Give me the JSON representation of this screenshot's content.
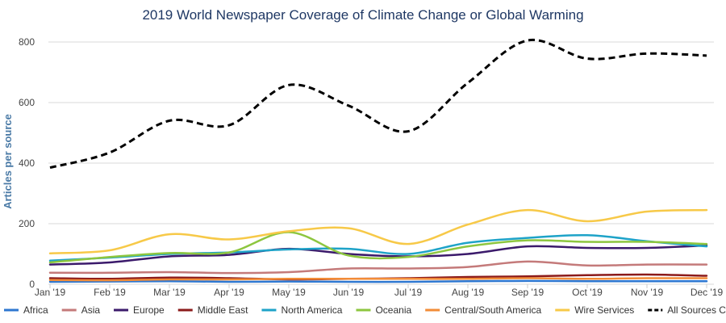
{
  "chart_data": {
    "type": "line",
    "title": "2019 World Newspaper Coverage of Climate Change or Global Warming",
    "ylabel": "Articles per source",
    "xlabel": "",
    "ylim": [
      0,
      800
    ],
    "yticks": [
      0,
      200,
      400,
      600,
      800
    ],
    "grid": true,
    "legend_position": "bottom",
    "categories": [
      "Jan '19",
      "Feb '19",
      "Mar '19",
      "Apr '19",
      "May '19",
      "Jun '19",
      "Jul '19",
      "Aug '19",
      "Sep '19",
      "Oct '19",
      "Nov '19",
      "Dec '19"
    ],
    "series": [
      {
        "name": "Africa",
        "color": "#2e77d0",
        "dashed": false,
        "values": [
          8,
          9,
          10,
          8,
          9,
          8,
          8,
          10,
          11,
          10,
          10,
          10
        ]
      },
      {
        "name": "Asia",
        "color": "#c47a7a",
        "dashed": false,
        "values": [
          38,
          38,
          40,
          37,
          40,
          52,
          52,
          57,
          75,
          62,
          65,
          65
        ]
      },
      {
        "name": "Europe",
        "color": "#3b1a6b",
        "dashed": false,
        "values": [
          65,
          72,
          92,
          97,
          117,
          100,
          92,
          100,
          125,
          120,
          120,
          128
        ]
      },
      {
        "name": "Middle East",
        "color": "#8b1a1a",
        "dashed": false,
        "values": [
          20,
          18,
          22,
          20,
          16,
          18,
          20,
          24,
          26,
          30,
          32,
          28
        ]
      },
      {
        "name": "North America",
        "color": "#1ea3c8",
        "dashed": false,
        "values": [
          78,
          88,
          100,
          105,
          115,
          117,
          100,
          137,
          153,
          162,
          142,
          125
        ]
      },
      {
        "name": "Oceania",
        "color": "#8dc63f",
        "dashed": false,
        "values": [
          72,
          90,
          103,
          105,
          172,
          95,
          90,
          125,
          145,
          140,
          140,
          133
        ]
      },
      {
        "name": "Central/South America",
        "color": "#f28c38",
        "dashed": false,
        "values": [
          14,
          13,
          16,
          16,
          18,
          18,
          18,
          18,
          20,
          18,
          20,
          20
        ]
      },
      {
        "name": "Wire Services",
        "color": "#f7c948",
        "dashed": false,
        "values": [
          102,
          112,
          165,
          148,
          175,
          185,
          133,
          197,
          245,
          208,
          240,
          245
        ]
      },
      {
        "name": "All Sources Combined",
        "color": "#000000",
        "dashed": true,
        "values": [
          385,
          435,
          540,
          525,
          658,
          590,
          505,
          665,
          805,
          745,
          762,
          755
        ]
      }
    ]
  }
}
